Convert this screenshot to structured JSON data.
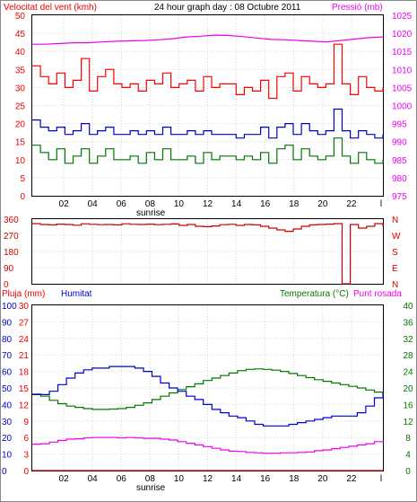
{
  "chart_data": [
    {
      "type": "line",
      "title": "24 hour graph day : 08 Octubre 2011",
      "left_axis_label": "Velocitat del vent (kmh)",
      "right_axis_label": "Pressió (mb)",
      "left_ylim": [
        0,
        50
      ],
      "left_ticks": [
        "0",
        "5",
        "10",
        "15",
        "20",
        "25",
        "30",
        "35",
        "40",
        "45",
        "50"
      ],
      "right_ylim": [
        975,
        1025
      ],
      "right_ticks": [
        "975",
        "980",
        "985",
        "990",
        "995",
        "1000",
        "1005",
        "1010",
        "1015",
        "1020",
        "1025"
      ],
      "x_ticks": [
        "02",
        "04",
        "06",
        "08",
        "10",
        "12",
        "14",
        "16",
        "18",
        "20",
        "22"
      ],
      "x_end_tick": "l",
      "sunrise_label": "sunrise",
      "grid": true,
      "colors": {
        "gust": "#ff0000",
        "average": "#0000cc",
        "lull": "#007700",
        "pressure": "#ee00ee"
      },
      "series": [
        {
          "axis": "right",
          "color": "#ee00ee",
          "y": [
            1017.0,
            1017.0,
            1017.2,
            1017.4,
            1017.4,
            1017.6,
            1017.8,
            1017.9,
            1018.0,
            1018.2,
            1018.5,
            1019.0,
            1019.2,
            1019.5,
            1019.4,
            1019.1,
            1018.7,
            1018.3,
            1018.2,
            1018.0,
            1017.8,
            1017.6,
            1018.0,
            1018.4,
            1018.8,
            1019.0
          ]
        },
        {
          "axis": "left",
          "color": "#ff0000",
          "y": [
            36,
            33,
            31,
            34,
            30,
            32,
            38,
            29,
            33,
            35,
            31,
            30,
            31,
            29,
            32,
            31,
            34,
            30,
            31,
            32,
            29,
            33,
            30,
            31,
            31,
            28,
            30,
            29,
            32,
            27,
            33,
            34,
            29,
            33,
            31,
            30,
            31,
            42,
            31,
            28,
            33,
            30,
            29,
            30
          ]
        },
        {
          "axis": "left",
          "color": "#0000cc",
          "y": [
            21,
            19,
            18,
            19,
            17,
            18,
            20,
            17,
            18,
            19,
            17,
            17,
            18,
            17,
            18,
            17,
            19,
            17,
            17,
            18,
            17,
            18,
            17,
            17,
            17,
            16,
            17,
            17,
            19,
            16,
            19,
            20,
            17,
            20,
            18,
            17,
            18,
            24,
            18,
            16,
            18,
            17,
            16,
            17
          ]
        },
        {
          "axis": "left",
          "color": "#007700",
          "y": [
            14,
            12,
            10,
            13,
            9,
            11,
            13,
            9,
            11,
            13,
            10,
            10,
            11,
            9,
            12,
            10,
            13,
            10,
            10,
            11,
            9,
            12,
            10,
            11,
            11,
            10,
            11,
            10,
            12,
            9,
            13,
            14,
            10,
            13,
            11,
            10,
            11,
            16,
            11,
            9,
            12,
            10,
            9,
            10
          ]
        }
      ]
    },
    {
      "type": "line",
      "title": "",
      "left_ylim": [
        0,
        360
      ],
      "left_ticks": [
        "0",
        "90",
        "180",
        "270",
        "360"
      ],
      "right_labels": [
        "N",
        "W",
        "S",
        "E",
        "N"
      ],
      "x_ticks": [],
      "grid": true,
      "series": [
        {
          "color": "#cc0000",
          "y": [
            335,
            330,
            328,
            332,
            330,
            326,
            334,
            331,
            329,
            330,
            328,
            334,
            331,
            330,
            332,
            329,
            331,
            333,
            325,
            330,
            320,
            318,
            322,
            329,
            331,
            325,
            330,
            328,
            320,
            310,
            300,
            292,
            305,
            320,
            328,
            330,
            332,
            335,
            0,
            330,
            310,
            320,
            335,
            320
          ]
        }
      ]
    },
    {
      "type": "line",
      "title": "",
      "axis_labels": {
        "rain": "Pluja (mm)",
        "humidity": "Humitat",
        "temperature": "Temperatura (°C)",
        "dewpoint": "Punt rosada"
      },
      "humidity_ylim": [
        0,
        100
      ],
      "humidity_ticks": [
        "0",
        "10",
        "20",
        "30",
        "40",
        "50",
        "60",
        "70",
        "80",
        "90",
        "100"
      ],
      "rain_ylim": [
        0,
        30
      ],
      "rain_ticks": [
        "0",
        "3",
        "6",
        "9",
        "12",
        "15",
        "18",
        "21",
        "24",
        "27",
        "30"
      ],
      "temperature_ylim": [
        0,
        40
      ],
      "temperature_ticks": [
        "0",
        "4",
        "8",
        "12",
        "16",
        "20",
        "24",
        "28",
        "32",
        "36",
        "40"
      ],
      "x_ticks": [
        "02",
        "04",
        "06",
        "08",
        "10",
        "12",
        "14",
        "16",
        "18",
        "20",
        "22"
      ],
      "x_end_tick": "l",
      "sunrise_label": "sunrise",
      "grid": true,
      "colors": {
        "humidity": "#0000cc",
        "temperature": "#007700",
        "dewpoint": "#ee00ee",
        "rain": "#cc0000"
      },
      "series": [
        {
          "name": "Humitat",
          "axis": "humidity",
          "color": "#0000cc",
          "y": [
            46,
            46,
            48,
            52,
            56,
            59,
            61,
            62,
            62,
            63,
            63,
            63,
            62,
            60,
            57,
            53,
            50,
            48,
            45,
            43,
            40,
            37,
            35,
            33,
            32,
            30,
            28,
            27,
            27,
            27,
            28,
            29,
            30,
            31,
            32,
            33,
            33,
            33,
            35,
            39,
            44,
            47
          ]
        },
        {
          "name": "Temperatura (°C)",
          "axis": "temperature",
          "color": "#007700",
          "y": [
            18.5,
            18.0,
            17.0,
            16.2,
            15.6,
            15.3,
            15.0,
            14.8,
            14.8,
            14.9,
            15.0,
            15.3,
            15.8,
            16.4,
            17.2,
            18.0,
            18.8,
            19.6,
            20.3,
            21.0,
            21.8,
            22.4,
            23.0,
            23.6,
            24.2,
            24.5,
            24.6,
            24.5,
            24.3,
            24.0,
            23.5,
            23.0,
            22.5,
            22.0,
            21.6,
            21.2,
            20.8,
            20.4,
            20.0,
            19.5,
            19.0,
            18.7
          ]
        },
        {
          "name": "Punt rosada",
          "axis": "temperature",
          "color": "#ee00ee",
          "y": [
            6.4,
            6.5,
            6.9,
            7.3,
            7.6,
            7.7,
            7.9,
            8.0,
            8.0,
            8.0,
            7.9,
            8.0,
            7.9,
            7.8,
            7.8,
            7.6,
            7.4,
            7.0,
            6.6,
            6.2,
            5.8,
            5.4,
            5.0,
            4.7,
            4.6,
            4.4,
            4.3,
            4.2,
            4.2,
            4.3,
            4.3,
            4.4,
            4.5,
            4.8,
            5.0,
            5.3,
            5.6,
            5.9,
            6.2,
            6.5,
            7.0,
            7.2
          ]
        },
        {
          "name": "Pluja (mm)",
          "axis": "rain",
          "color": "#cc0000",
          "y": [
            0,
            0
          ]
        }
      ]
    }
  ]
}
